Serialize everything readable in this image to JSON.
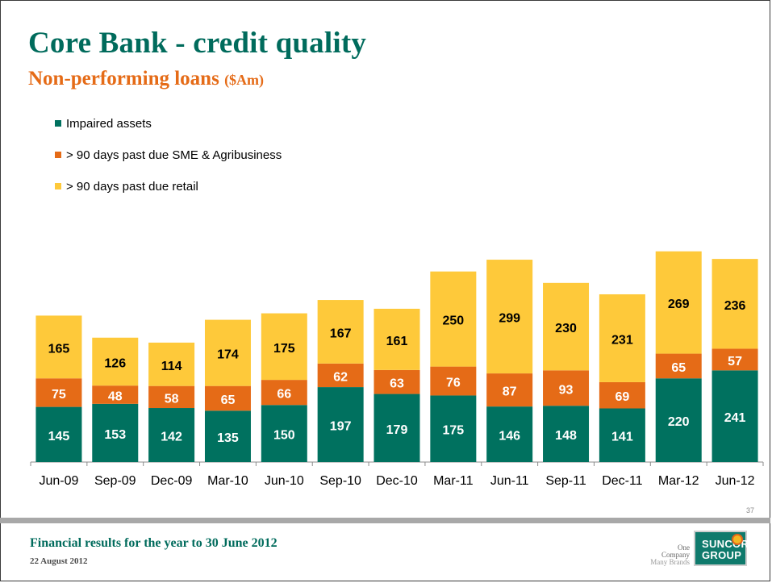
{
  "title": "Core Bank - credit quality",
  "subtitle": "Non-performing loans",
  "subtitle_unit": "($Am)",
  "footer": {
    "title": "Financial results for the year to 30 June 2012",
    "date": "22 August 2012",
    "page_number": "37",
    "tagline_line1": "One Company",
    "tagline_line2": "Many Brands",
    "logo_line1": "SUNCORP",
    "logo_line2": "GROUP"
  },
  "chart_data": {
    "type": "bar",
    "stacked": true,
    "title": "",
    "xlabel": "",
    "ylabel": "",
    "legend_position": "top-left",
    "grid": false,
    "categories": [
      "Jun-09",
      "Sep-09",
      "Dec-09",
      "Mar-10",
      "Jun-10",
      "Sep-10",
      "Dec-10",
      "Mar-11",
      "Jun-11",
      "Sep-11",
      "Dec-11",
      "Mar-12",
      "Jun-12"
    ],
    "series": [
      {
        "name": "Impaired assets",
        "color": "#00715f",
        "values": [
          145,
          153,
          142,
          135,
          150,
          197,
          179,
          175,
          146,
          148,
          141,
          220,
          241
        ]
      },
      {
        "name": "> 90 days past due SME & Agribusiness",
        "color": "#e56b17",
        "values": [
          75,
          48,
          58,
          65,
          66,
          62,
          63,
          76,
          87,
          93,
          69,
          65,
          57
        ]
      },
      {
        "name": "> 90 days past due retail",
        "color": "#fec93a",
        "values": [
          165,
          126,
          114,
          174,
          175,
          167,
          161,
          250,
          299,
          230,
          231,
          269,
          236
        ]
      }
    ]
  }
}
